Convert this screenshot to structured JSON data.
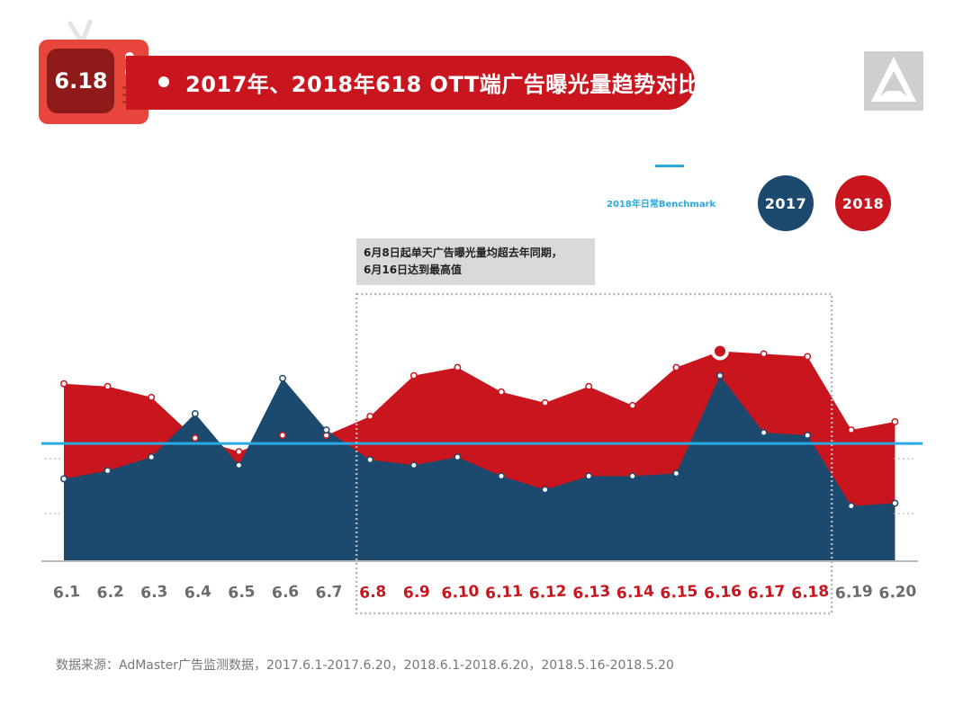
{
  "header": {
    "badge_text": "6.18",
    "title": "2017年、2018年618 OTT端广告曝光量趋势对比"
  },
  "legend": {
    "benchmark_label": "2018年日常Benchmark",
    "series_2017": "2017",
    "series_2018": "2018"
  },
  "annotation": {
    "line1": "6月8日起单天广告曝光量均超去年同期，",
    "line2": "6月16日达到最高值"
  },
  "source_note": "数据来源：AdMaster广告监测数据，2017.6.1-2017.6.20，2018.6.1-2018.6.20，2018.5.16-2018.5.20",
  "colors": {
    "series_2017": "#1c4a6e",
    "series_2018": "#c9151e",
    "benchmark": "#29a9e0",
    "highlight_tick": "#c9151e",
    "normal_tick": "#6b6b6b"
  },
  "chart_data": {
    "type": "area",
    "categories": [
      "6.1",
      "6.2",
      "6.3",
      "6.4",
      "6.5",
      "6.6",
      "6.7",
      "6.8",
      "6.9",
      "6.10",
      "6.11",
      "6.12",
      "6.13",
      "6.14",
      "6.15",
      "6.16",
      "6.17",
      "6.18",
      "6.19",
      "6.20"
    ],
    "series": [
      {
        "name": "2018",
        "values": [
          65,
          64,
          60,
          45,
          40,
          46,
          46,
          53,
          68,
          71,
          62,
          58,
          64,
          57,
          71,
          77,
          76,
          75,
          48,
          51
        ]
      },
      {
        "name": "2017",
        "values": [
          30,
          33,
          38,
          54,
          35,
          67,
          48,
          37,
          35,
          38,
          31,
          26,
          31,
          31,
          32,
          68,
          47,
          46,
          20,
          21
        ]
      }
    ],
    "benchmark": 43,
    "highlight_categories": [
      "6.8",
      "6.9",
      "6.10",
      "6.11",
      "6.12",
      "6.13",
      "6.14",
      "6.15",
      "6.16",
      "6.17",
      "6.18"
    ],
    "peak_category": "6.16",
    "ylim": [
      0,
      100
    ],
    "xlabel": "",
    "ylabel": "",
    "grid": false
  }
}
